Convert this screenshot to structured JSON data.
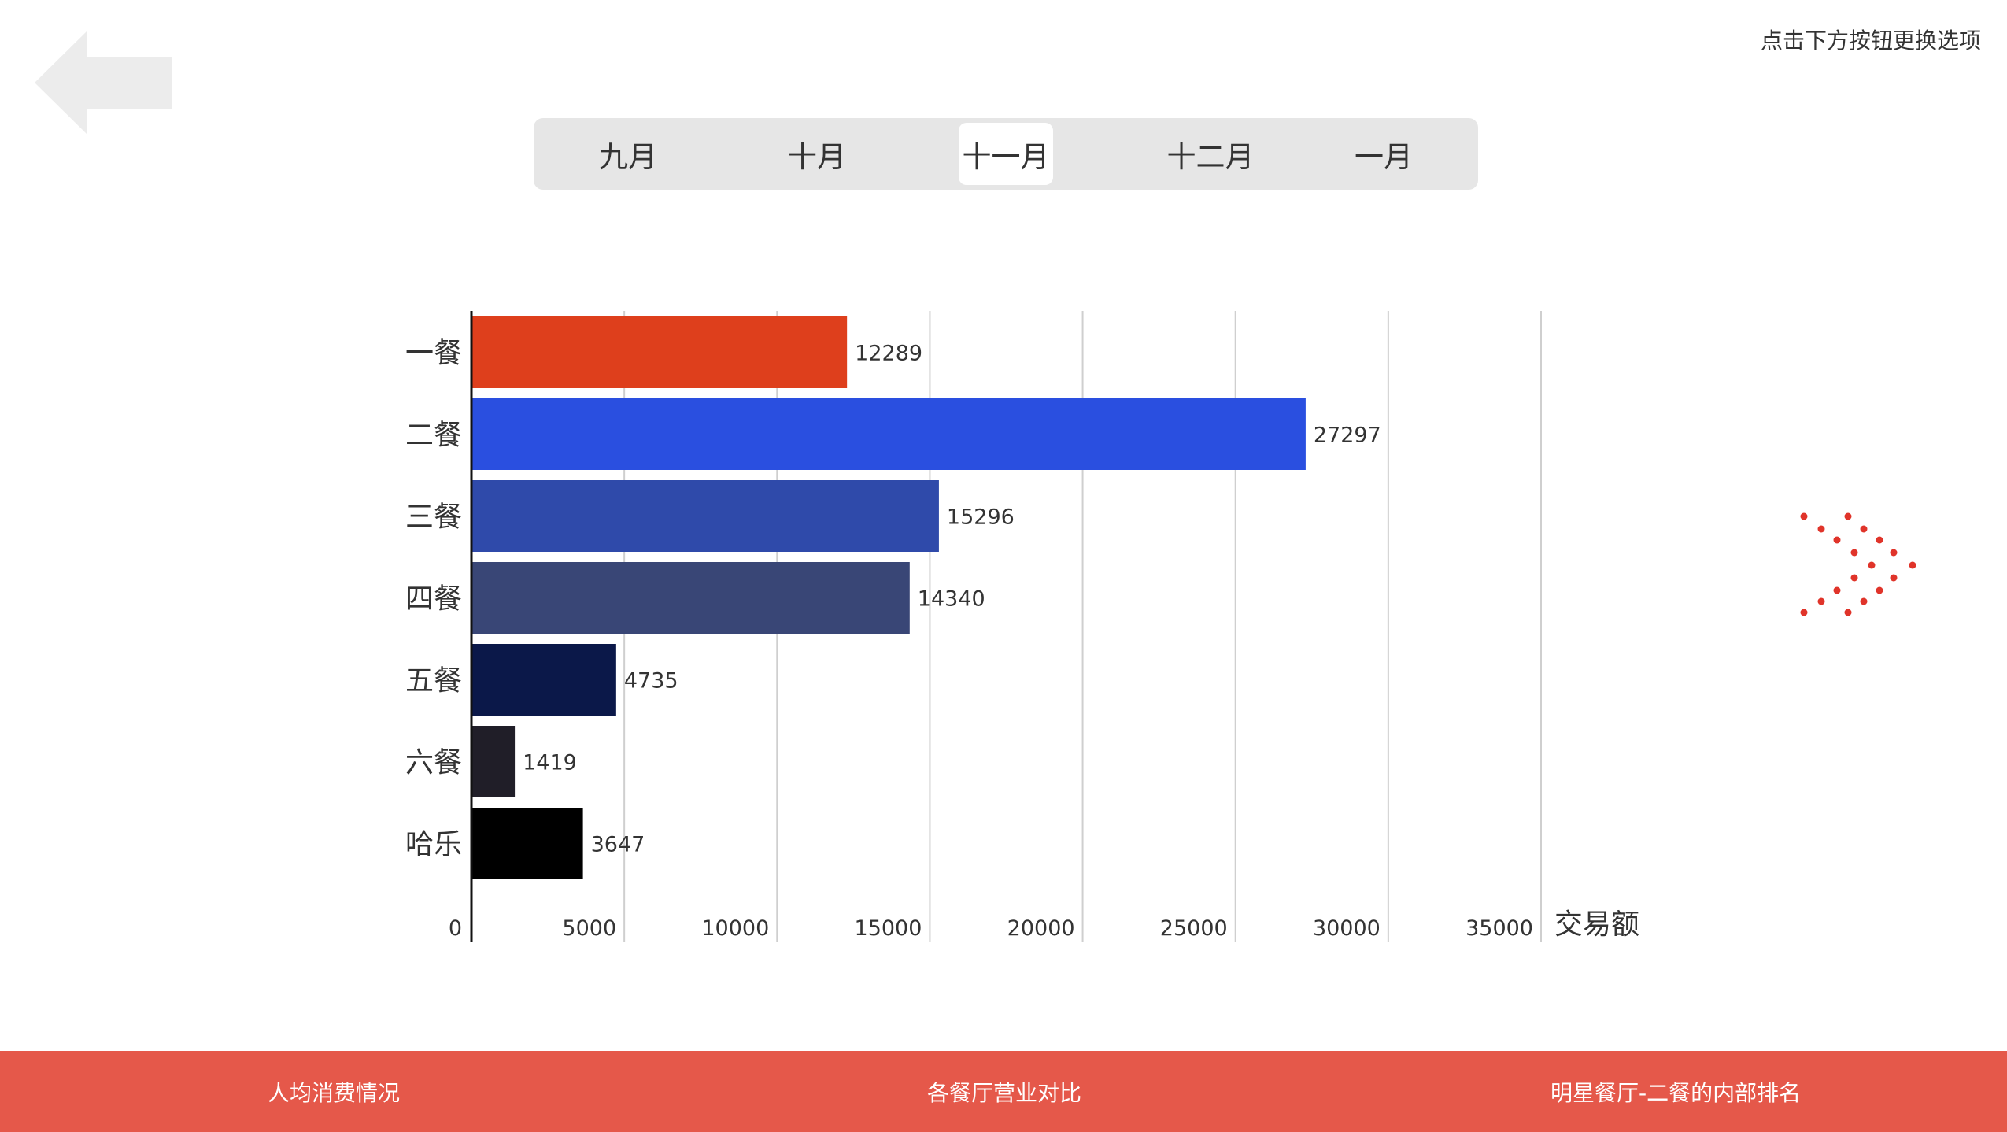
{
  "header": {
    "hint_text": "点击下方按钮更换选项",
    "back_icon": "left-arrow-icon"
  },
  "months": {
    "tabs": [
      "九月",
      "十月",
      "十一月",
      "十二月",
      "一月"
    ],
    "selected_index": 2
  },
  "chart_data": {
    "type": "bar",
    "orientation": "horizontal",
    "categories": [
      "一餐",
      "二餐",
      "三餐",
      "四餐",
      "五餐",
      "六餐",
      "哈乐"
    ],
    "values": [
      12289,
      27297,
      15296,
      14340,
      4735,
      1419,
      3647
    ],
    "value_labels": [
      "12289",
      "27297",
      "15296",
      "14340",
      "4735",
      "1419",
      "3647"
    ],
    "colors": [
      "#de3f1c",
      "#2a4fe0",
      "#2f4aaa",
      "#394676",
      "#0b1849",
      "#201e28",
      "#000000"
    ],
    "xlabel": "交易额",
    "xlim": [
      0,
      35000
    ],
    "x_ticks": [
      "0",
      "5000",
      "10000",
      "15000",
      "20000",
      "25000",
      "30000",
      "35000"
    ],
    "grid": true
  },
  "next_icon": "dotted-chevron-right-icon",
  "footer": {
    "items": [
      "人均消费情况",
      "各餐厅营业对比",
      "明星餐厅-二餐的内部排名"
    ],
    "background": "#e5584a"
  }
}
